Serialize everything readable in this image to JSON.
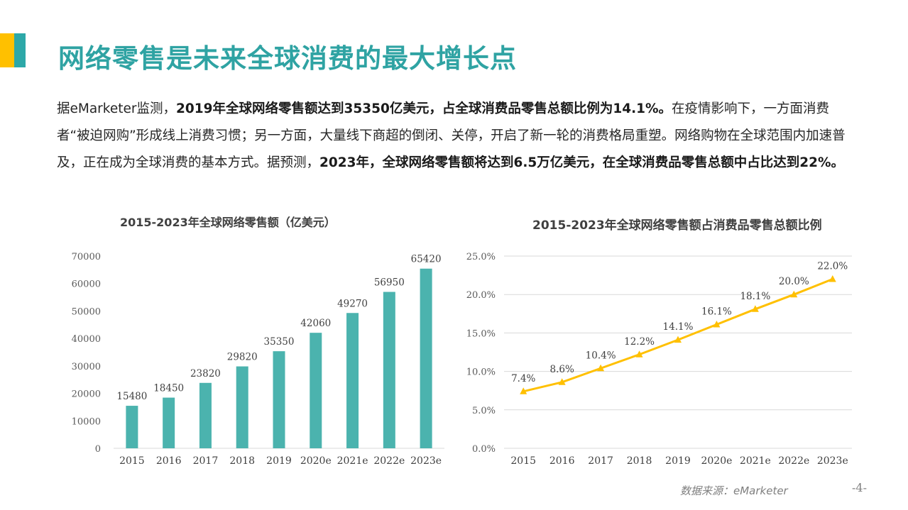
{
  "page": {
    "title": "网络零售是未来全球消费的最大增长点",
    "intro": [
      {
        "text": "据eMarketer监测，",
        "bold": false
      },
      {
        "text": "2019年全球网络零售额达到35350亿美元，占全球消费品零售总额比例为14.1%。",
        "bold": true
      },
      {
        "text": "在疫情影响下，一方面消费者“被迫网购”形成线上消费习惯；另一方面，大量线下商超的倒闭、关停，开启了新一轮的消费格局重塑。网络购物在全球范围内加速普及，正在成为全球消费的基本方式。据预测，",
        "bold": false
      },
      {
        "text": "2023年，全球网络零售额将达到6.5万亿美元，在全球消费品零售总额中占比达到22%。",
        "bold": true
      }
    ],
    "source": "数据来源：eMarketer",
    "page_number": "-4-"
  },
  "colors": {
    "teal": "#4BB3AE",
    "yellow": "#FFC000",
    "title": "#2FA3A3"
  },
  "chart_data": [
    {
      "type": "bar",
      "title": "2015-2023年全球网络零售额（亿美元）",
      "categories": [
        "2015",
        "2016",
        "2017",
        "2018",
        "2019",
        "2020e",
        "2021e",
        "2022e",
        "2023e"
      ],
      "values": [
        15480,
        18450,
        23820,
        29820,
        35350,
        42060,
        49270,
        56950,
        65420
      ],
      "data_labels": [
        "15480",
        "18450",
        "23820",
        "29820",
        "35350",
        "42060",
        "49270",
        "56950",
        "65420"
      ],
      "ylim": [
        0,
        70000
      ],
      "yticks": [
        "0",
        "10000",
        "20000",
        "30000",
        "40000",
        "50000",
        "60000",
        "70000"
      ],
      "grid": false,
      "color": "#4BB3AE"
    },
    {
      "type": "line",
      "title": "2015-2023年全球网络零售额占消费品零售总额比例",
      "categories": [
        "2015",
        "2016",
        "2017",
        "2018",
        "2019",
        "2020e",
        "2021e",
        "2022e",
        "2023e"
      ],
      "values": [
        7.4,
        8.6,
        10.4,
        12.2,
        14.1,
        16.1,
        18.1,
        20.0,
        22.0
      ],
      "data_labels": [
        "7.4%",
        "8.6%",
        "10.4%",
        "12.2%",
        "14.1%",
        "16.1%",
        "18.1%",
        "20.0%",
        "22.0%"
      ],
      "ylim": [
        0,
        25
      ],
      "yticks": [
        "0.0%",
        "5.0%",
        "10.0%",
        "15.0%",
        "20.0%",
        "25.0%"
      ],
      "grid": true,
      "marker": "triangle",
      "color": "#FFC000"
    }
  ]
}
